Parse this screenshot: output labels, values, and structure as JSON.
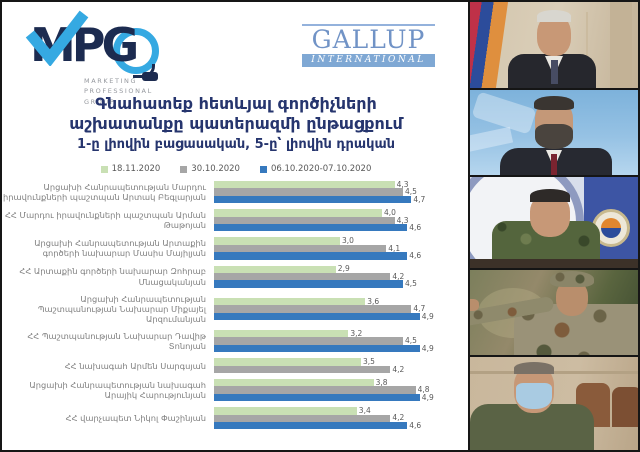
{
  "logos": {
    "mpg": {
      "letters": "MPG",
      "tagline": [
        "MARKETING",
        "PROFESSIONAL",
        "GROUP"
      ]
    },
    "gallup": {
      "name": "GALLUP",
      "subtitle": "INTERNATIONAL"
    }
  },
  "title": {
    "line1": "Գնահատեք հետևյալ գործիչների",
    "line2": "աշխատանքը պատերազմի ընթացքում",
    "line3": "1-ը լիովին բացասական, 5-ը՝ լիովին դրական"
  },
  "chart_data": {
    "type": "bar",
    "orientation": "horizontal",
    "xlim": [
      0,
      5
    ],
    "grid": false,
    "legend_position": "top",
    "categories": [
      "Արցախի Հանրապետության Մարդու իրավունքների պաշտպան Արտակ Բեգլարյան",
      "ՀՀ Մարդու իրավունքների պաշտպան Արման Թաթոյան",
      "Արցախի Հանրապետության Արտաքին գործերի նախարար Մասիս Մայիլյան",
      "ՀՀ Արտաքին գործերի նախարար Զոհրաբ Մնացականյան",
      "Արցախի Հանրապետության Պաշտպանության Նախարար Միքայել Արզումանյան",
      "ՀՀ Պաշտպանության Նախարար Դավիթ Տոնոյան",
      "ՀՀ նախագահ Արմեն Սարգսյան",
      "Արցախի Հանրապետության նախագահ Արայիկ Հարությունյան",
      "ՀՀ վարչապետ Նիկոլ Փաշինյան"
    ],
    "series": [
      {
        "name": "18.11.2020",
        "color": "#C9E0B4",
        "values": [
          4.3,
          4.0,
          3.0,
          2.9,
          3.6,
          3.2,
          3.5,
          3.8,
          3.4
        ],
        "labels": [
          "4,3",
          "4,0",
          "3,0",
          "2,9",
          "3,6",
          "3,2",
          "3,5",
          "3,8",
          "3,4"
        ]
      },
      {
        "name": "30.10.2020",
        "color": "#A6A6A6",
        "values": [
          4.5,
          4.3,
          4.1,
          4.2,
          4.7,
          4.5,
          4.2,
          4.8,
          4.2
        ],
        "labels": [
          "4,5",
          "4,3",
          "4,1",
          "4,2",
          "4,7",
          "4,5",
          "4,2",
          "4,8",
          "4,2"
        ]
      },
      {
        "name": "06.10.2020-07.10.2020",
        "color": "#3679BE",
        "values": [
          4.7,
          4.6,
          4.6,
          4.5,
          4.9,
          4.9,
          null,
          4.9,
          4.6
        ],
        "labels": [
          "4,7",
          "4,6",
          "4,6",
          "4,5",
          "4,9",
          "4,9",
          null,
          "4,9",
          "4,6"
        ]
      }
    ]
  },
  "photos": [
    {
      "id": "portrait-1",
      "desc": "official in dark suit beside Armenian flag"
    },
    {
      "id": "portrait-2",
      "desc": "bearded official in suit against sky background"
    },
    {
      "id": "portrait-3",
      "desc": "official in camouflage at press conference"
    },
    {
      "id": "portrait-4",
      "desc": "military officer in camouflage pointing"
    },
    {
      "id": "portrait-5",
      "desc": "official in olive shirt wearing medical mask"
    }
  ]
}
